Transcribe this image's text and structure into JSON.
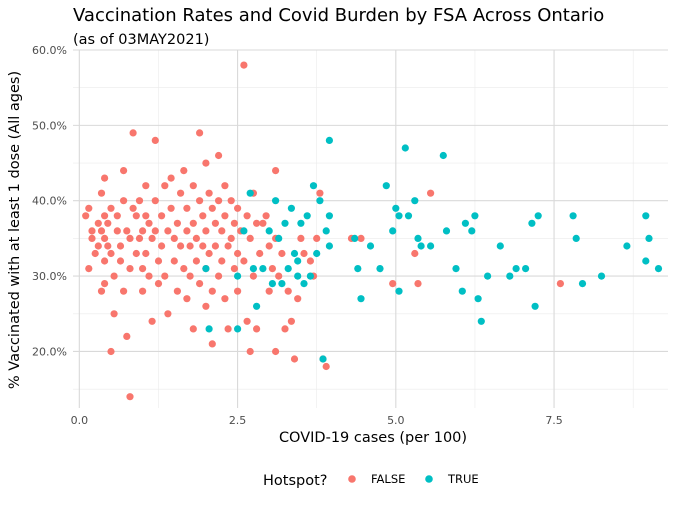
{
  "chart_data": {
    "type": "scatter",
    "title": "Vaccination Rates and Covid Burden by FSA Across Ontario",
    "subtitle": "(as of 03MAY2021)",
    "xlabel": "COVID-19 cases (per 100)",
    "ylabel": "% Vaccinated with at least 1 dose (All ages)",
    "xlim": [
      -0.1,
      9.3
    ],
    "ylim": [
      0.125,
      0.6
    ],
    "x_ticks": [
      0,
      2.5,
      5,
      7.5
    ],
    "x_tick_labels": [
      "0.0",
      "2.5",
      "5.0",
      "7.5"
    ],
    "y_ticks": [
      0.2,
      0.3,
      0.4,
      0.5,
      0.6
    ],
    "y_tick_labels": [
      "20.0%",
      "30.0%",
      "40.0%",
      "50.0%",
      "60.0%"
    ],
    "grid": true,
    "legend": {
      "title": "Hotspot?",
      "position": "bottom"
    },
    "series": [
      {
        "name": "FALSE",
        "color": "#F8766D",
        "points": [
          [
            0.1,
            0.38
          ],
          [
            0.15,
            0.39
          ],
          [
            0.15,
            0.31
          ],
          [
            0.2,
            0.35
          ],
          [
            0.2,
            0.36
          ],
          [
            0.25,
            0.33
          ],
          [
            0.3,
            0.34
          ],
          [
            0.3,
            0.37
          ],
          [
            0.35,
            0.41
          ],
          [
            0.35,
            0.28
          ],
          [
            0.35,
            0.36
          ],
          [
            0.4,
            0.43
          ],
          [
            0.4,
            0.38
          ],
          [
            0.4,
            0.35
          ],
          [
            0.4,
            0.32
          ],
          [
            0.4,
            0.29
          ],
          [
            0.45,
            0.34
          ],
          [
            0.45,
            0.37
          ],
          [
            0.5,
            0.33
          ],
          [
            0.5,
            0.39
          ],
          [
            0.5,
            0.2
          ],
          [
            0.55,
            0.25
          ],
          [
            0.55,
            0.3
          ],
          [
            0.6,
            0.36
          ],
          [
            0.6,
            0.38
          ],
          [
            0.65,
            0.34
          ],
          [
            0.65,
            0.32
          ],
          [
            0.7,
            0.44
          ],
          [
            0.7,
            0.4
          ],
          [
            0.7,
            0.28
          ],
          [
            0.75,
            0.36
          ],
          [
            0.75,
            0.22
          ],
          [
            0.8,
            0.35
          ],
          [
            0.8,
            0.31
          ],
          [
            0.8,
            0.14
          ],
          [
            0.85,
            0.49
          ],
          [
            0.85,
            0.39
          ],
          [
            0.9,
            0.38
          ],
          [
            0.9,
            0.33
          ],
          [
            0.95,
            0.35
          ],
          [
            0.95,
            0.4
          ],
          [
            1.0,
            0.36
          ],
          [
            1.0,
            0.31
          ],
          [
            1.0,
            0.28
          ],
          [
            1.05,
            0.42
          ],
          [
            1.05,
            0.38
          ],
          [
            1.05,
            0.33
          ],
          [
            1.1,
            0.37
          ],
          [
            1.1,
            0.3
          ],
          [
            1.15,
            0.35
          ],
          [
            1.15,
            0.24
          ],
          [
            1.2,
            0.48
          ],
          [
            1.2,
            0.4
          ],
          [
            1.2,
            0.36
          ],
          [
            1.25,
            0.32
          ],
          [
            1.25,
            0.29
          ],
          [
            1.3,
            0.38
          ],
          [
            1.3,
            0.34
          ],
          [
            1.35,
            0.42
          ],
          [
            1.35,
            0.3
          ],
          [
            1.4,
            0.36
          ],
          [
            1.4,
            0.25
          ],
          [
            1.45,
            0.43
          ],
          [
            1.45,
            0.39
          ],
          [
            1.5,
            0.35
          ],
          [
            1.5,
            0.32
          ],
          [
            1.55,
            0.37
          ],
          [
            1.55,
            0.28
          ],
          [
            1.6,
            0.41
          ],
          [
            1.6,
            0.34
          ],
          [
            1.65,
            0.44
          ],
          [
            1.65,
            0.31
          ],
          [
            1.7,
            0.39
          ],
          [
            1.7,
            0.36
          ],
          [
            1.7,
            0.27
          ],
          [
            1.75,
            0.34
          ],
          [
            1.75,
            0.3
          ],
          [
            1.8,
            0.42
          ],
          [
            1.8,
            0.37
          ],
          [
            1.8,
            0.23
          ],
          [
            1.85,
            0.35
          ],
          [
            1.85,
            0.32
          ],
          [
            1.9,
            0.49
          ],
          [
            1.9,
            0.4
          ],
          [
            1.9,
            0.29
          ],
          [
            1.95,
            0.38
          ],
          [
            1.95,
            0.34
          ],
          [
            2.0,
            0.45
          ],
          [
            2.0,
            0.36
          ],
          [
            2.0,
            0.31
          ],
          [
            2.0,
            0.26
          ],
          [
            2.05,
            0.41
          ],
          [
            2.05,
            0.33
          ],
          [
            2.1,
            0.39
          ],
          [
            2.1,
            0.28
          ],
          [
            2.1,
            0.21
          ],
          [
            2.15,
            0.37
          ],
          [
            2.15,
            0.34
          ],
          [
            2.2,
            0.46
          ],
          [
            2.2,
            0.4
          ],
          [
            2.2,
            0.3
          ],
          [
            2.25,
            0.36
          ],
          [
            2.25,
            0.32
          ],
          [
            2.3,
            0.42
          ],
          [
            2.3,
            0.38
          ],
          [
            2.3,
            0.27
          ],
          [
            2.35,
            0.34
          ],
          [
            2.35,
            0.23
          ],
          [
            2.4,
            0.4
          ],
          [
            2.4,
            0.35
          ],
          [
            2.45,
            0.31
          ],
          [
            2.45,
            0.37
          ],
          [
            2.5,
            0.39
          ],
          [
            2.5,
            0.33
          ],
          [
            2.5,
            0.28
          ],
          [
            2.55,
            0.36
          ],
          [
            2.6,
            0.58
          ],
          [
            2.6,
            0.32
          ],
          [
            2.65,
            0.38
          ],
          [
            2.65,
            0.24
          ],
          [
            2.7,
            0.35
          ],
          [
            2.7,
            0.2
          ],
          [
            2.75,
            0.41
          ],
          [
            2.75,
            0.3
          ],
          [
            2.8,
            0.37
          ],
          [
            2.8,
            0.23
          ],
          [
            2.85,
            0.33
          ],
          [
            2.9,
            0.37
          ],
          [
            2.95,
            0.38
          ],
          [
            3.0,
            0.34
          ],
          [
            3.0,
            0.28
          ],
          [
            3.05,
            0.31
          ],
          [
            3.1,
            0.44
          ],
          [
            3.1,
            0.35
          ],
          [
            3.1,
            0.2
          ],
          [
            3.15,
            0.3
          ],
          [
            3.2,
            0.33
          ],
          [
            3.25,
            0.23
          ],
          [
            3.3,
            0.28
          ],
          [
            3.35,
            0.24
          ],
          [
            3.4,
            0.19
          ],
          [
            3.45,
            0.27
          ],
          [
            3.5,
            0.35
          ],
          [
            3.55,
            0.33
          ],
          [
            3.65,
            0.32
          ],
          [
            3.7,
            0.3
          ],
          [
            3.75,
            0.35
          ],
          [
            3.8,
            0.41
          ],
          [
            3.85,
            0.19
          ],
          [
            3.9,
            0.18
          ],
          [
            4.3,
            0.35
          ],
          [
            4.45,
            0.35
          ],
          [
            4.95,
            0.29
          ],
          [
            5.3,
            0.33
          ],
          [
            5.35,
            0.29
          ],
          [
            5.55,
            0.41
          ],
          [
            7.6,
            0.29
          ]
        ]
      },
      {
        "name": "TRUE",
        "color": "#00BFC4",
        "points": [
          [
            2.0,
            0.31
          ],
          [
            2.05,
            0.23
          ],
          [
            2.5,
            0.23
          ],
          [
            2.5,
            0.3
          ],
          [
            2.6,
            0.36
          ],
          [
            2.7,
            0.41
          ],
          [
            2.75,
            0.31
          ],
          [
            2.8,
            0.26
          ],
          [
            2.9,
            0.31
          ],
          [
            3.0,
            0.36
          ],
          [
            3.05,
            0.29
          ],
          [
            3.1,
            0.4
          ],
          [
            3.15,
            0.35
          ],
          [
            3.2,
            0.29
          ],
          [
            3.25,
            0.37
          ],
          [
            3.3,
            0.31
          ],
          [
            3.35,
            0.39
          ],
          [
            3.4,
            0.33
          ],
          [
            3.45,
            0.32
          ],
          [
            3.45,
            0.3
          ],
          [
            3.5,
            0.37
          ],
          [
            3.55,
            0.29
          ],
          [
            3.6,
            0.38
          ],
          [
            3.65,
            0.3
          ],
          [
            3.7,
            0.42
          ],
          [
            3.75,
            0.33
          ],
          [
            3.8,
            0.4
          ],
          [
            3.85,
            0.19
          ],
          [
            3.9,
            0.36
          ],
          [
            3.95,
            0.34
          ],
          [
            3.95,
            0.48
          ],
          [
            3.95,
            0.38
          ],
          [
            4.35,
            0.35
          ],
          [
            4.4,
            0.31
          ],
          [
            4.45,
            0.27
          ],
          [
            4.6,
            0.34
          ],
          [
            4.75,
            0.31
          ],
          [
            4.85,
            0.42
          ],
          [
            4.95,
            0.36
          ],
          [
            5.0,
            0.39
          ],
          [
            5.05,
            0.38
          ],
          [
            5.05,
            0.28
          ],
          [
            5.15,
            0.47
          ],
          [
            5.2,
            0.38
          ],
          [
            5.3,
            0.4
          ],
          [
            5.35,
            0.35
          ],
          [
            5.4,
            0.34
          ],
          [
            5.55,
            0.34
          ],
          [
            5.75,
            0.46
          ],
          [
            5.8,
            0.36
          ],
          [
            5.95,
            0.31
          ],
          [
            6.05,
            0.28
          ],
          [
            6.1,
            0.37
          ],
          [
            6.2,
            0.36
          ],
          [
            6.25,
            0.38
          ],
          [
            6.3,
            0.27
          ],
          [
            6.35,
            0.24
          ],
          [
            6.45,
            0.3
          ],
          [
            6.65,
            0.34
          ],
          [
            6.8,
            0.3
          ],
          [
            6.9,
            0.31
          ],
          [
            7.05,
            0.31
          ],
          [
            7.15,
            0.37
          ],
          [
            7.2,
            0.26
          ],
          [
            7.25,
            0.38
          ],
          [
            7.8,
            0.38
          ],
          [
            7.85,
            0.35
          ],
          [
            7.95,
            0.29
          ],
          [
            8.25,
            0.3
          ],
          [
            8.65,
            0.34
          ],
          [
            8.95,
            0.32
          ],
          [
            9.0,
            0.35
          ],
          [
            9.15,
            0.31
          ],
          [
            8.95,
            0.38
          ]
        ]
      }
    ]
  }
}
